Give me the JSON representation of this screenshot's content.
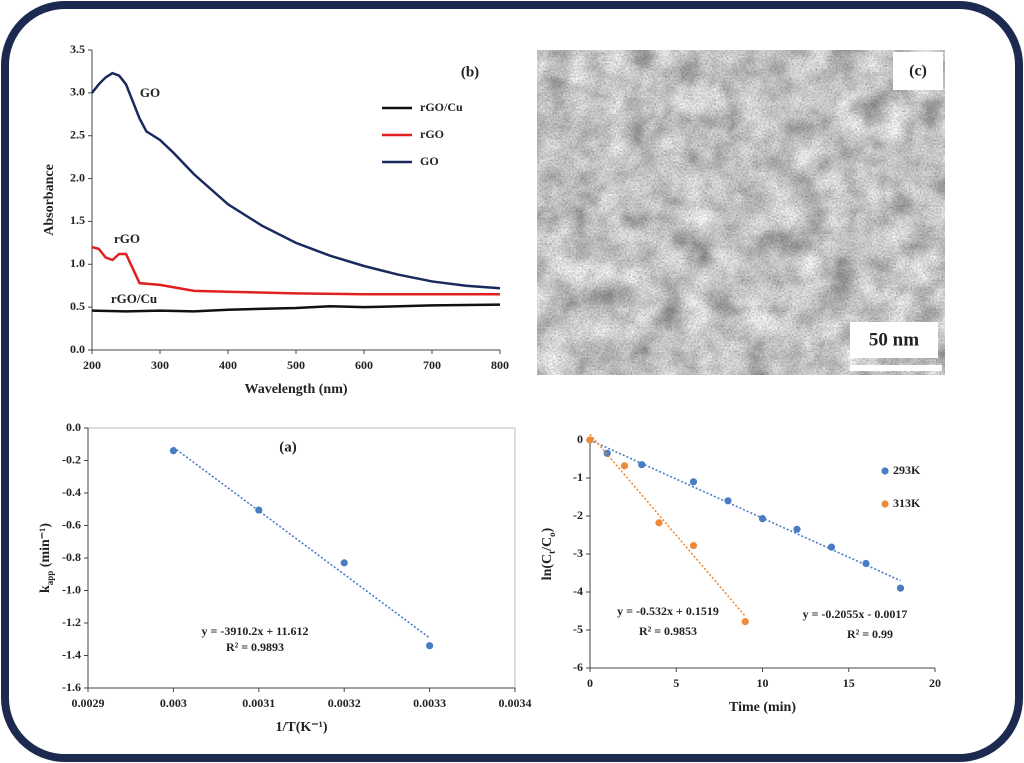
{
  "chart_data": [
    {
      "type": "line",
      "title": "(b)",
      "x_label": [
        {
          "text": "Wavelength (nm)"
        }
      ],
      "y_label": [
        {
          "text": "Absorbance"
        }
      ],
      "xlim": [
        200,
        800
      ],
      "xticks": [
        200,
        300,
        400,
        500,
        600,
        700,
        800
      ],
      "ylim": [
        0,
        3.5
      ],
      "yticks": [
        {
          "value": 0,
          "label": "0.0"
        },
        0.5,
        {
          "value": 1,
          "label": "1.0"
        },
        1.5,
        {
          "value": 2,
          "label": "2.0"
        },
        2.5,
        {
          "value": 3,
          "label": "3.0"
        },
        3.5
      ],
      "series": [
        {
          "name": "rGO/Cu",
          "color": "#111111",
          "x": [
            200,
            250,
            300,
            350,
            400,
            500,
            550,
            600,
            700,
            800
          ],
          "values": [
            0.46,
            0.45,
            0.46,
            0.45,
            0.47,
            0.49,
            0.51,
            0.5,
            0.52,
            0.53
          ]
        },
        {
          "name": "rGO",
          "color": "#e02020",
          "x": [
            200,
            210,
            220,
            230,
            240,
            250,
            260,
            270,
            300,
            350,
            400,
            500,
            600,
            700,
            800
          ],
          "values": [
            1.2,
            1.18,
            1.08,
            1.05,
            1.12,
            1.12,
            0.95,
            0.78,
            0.76,
            0.69,
            0.68,
            0.66,
            0.65,
            0.65,
            0.65
          ]
        },
        {
          "name": "GO",
          "color": "#1b2a5e",
          "x": [
            200,
            210,
            220,
            230,
            240,
            250,
            260,
            270,
            280,
            300,
            320,
            350,
            400,
            450,
            500,
            550,
            600,
            650,
            700,
            750,
            800
          ],
          "values": [
            3.0,
            3.1,
            3.18,
            3.23,
            3.2,
            3.1,
            2.9,
            2.7,
            2.55,
            2.45,
            2.3,
            2.05,
            1.7,
            1.45,
            1.25,
            1.1,
            0.98,
            0.88,
            0.8,
            0.75,
            0.72
          ]
        }
      ],
      "annotations": [
        "GO",
        "rGO",
        "rGO/Cu"
      ]
    },
    {
      "type": "scatter",
      "title": "(a)",
      "frame": true,
      "x_label": [
        {
          "text": "1/T(K⁻¹)"
        }
      ],
      "y_label": [
        {
          "text": "k"
        },
        {
          "text": "app",
          "sub": true
        },
        {
          "text": " (min⁻¹)"
        }
      ],
      "xlim": [
        0.0029,
        0.0034
      ],
      "xticks": [
        0.0029,
        0.003,
        0.0031,
        0.0032,
        0.0033,
        0.0034
      ],
      "ylim": [
        -1.6,
        0
      ],
      "yticks": [
        {
          "value": 0,
          "label": "0.0"
        },
        -0.2,
        -0.4,
        -0.6,
        -0.8,
        {
          "value": -1,
          "label": "-1.0"
        },
        -1.2,
        -1.4,
        -1.6
      ],
      "series": [
        {
          "name": "kapp",
          "color": "#4a7cc4",
          "x": [
            0.003,
            0.0031,
            0.0032,
            0.0033
          ],
          "values": [
            -0.14,
            -0.505,
            -0.83,
            -1.34
          ],
          "trendline": {
            "slope": -3910.2,
            "intercept": 11.612,
            "label": "y = -3910.2x + 11.612",
            "r2_label": "R² = 0.9893"
          }
        }
      ]
    },
    {
      "type": "scatter",
      "x_label": [
        {
          "text": "Time (min)"
        }
      ],
      "y_label": [
        {
          "text": "ln(C"
        },
        {
          "text": "t",
          "sub": true
        },
        {
          "text": "/C"
        },
        {
          "text": "o",
          "sub": true
        },
        {
          "text": ")"
        }
      ],
      "legend": true,
      "xlim": [
        0,
        20
      ],
      "xticks": [
        0,
        5,
        10,
        15,
        20
      ],
      "ylim": [
        -6,
        0
      ],
      "yticks": [
        0,
        -1,
        -2,
        -3,
        -4,
        -5,
        -6
      ],
      "series": [
        {
          "name": "293K",
          "color": "#4a7cc4",
          "x": [
            0,
            1,
            3,
            6,
            8,
            10,
            12,
            14,
            16,
            18
          ],
          "values": [
            0,
            -0.35,
            -0.65,
            -1.1,
            -1.6,
            -2.07,
            -2.35,
            -2.82,
            -3.25,
            -3.9
          ],
          "trendline": {
            "slope": -0.2055,
            "intercept": -0.0017,
            "label": "y = -0.2055x - 0.0017",
            "r2_label": "R² = 0.99"
          }
        },
        {
          "name": "313K",
          "color": "#ed8b3a",
          "x": [
            0,
            2,
            4,
            6,
            9
          ],
          "values": [
            0,
            -0.68,
            -2.18,
            -2.78,
            -4.78
          ],
          "trendline": {
            "slope": -0.532,
            "intercept": 0.1519,
            "label": "y = -0.532x + 0.1519",
            "r2_label": "R² = 0.9853"
          }
        }
      ]
    }
  ],
  "image": {
    "label": "(c)",
    "scale_bar": "50 nm"
  }
}
